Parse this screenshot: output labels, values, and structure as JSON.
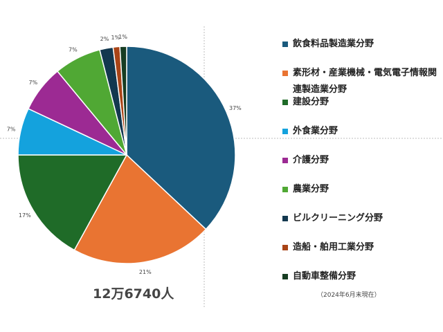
{
  "chart_data": {
    "type": "pie",
    "categories": [
      "飲食料品製造業分野",
      "素形材・産業機械・電気電子情報関連製造業分野",
      "建設分野",
      "外食業分野",
      "介護分野",
      "農業分野",
      "ビルクリーニング分野",
      "造船・舶用工業分野",
      "自動車整備分野"
    ],
    "values": [
      37,
      21,
      17,
      7,
      7,
      7,
      2,
      1,
      1
    ],
    "data_labels": [
      "37%",
      "21%",
      "17%",
      "7%",
      "7%",
      "7%",
      "2%",
      "1%",
      "1%"
    ],
    "colors": [
      "#1a5a7d",
      "#e97432",
      "#1f6b28",
      "#14a2dd",
      "#9c2a93",
      "#50a834",
      "#13384f",
      "#a94417",
      "#173d22"
    ],
    "legend_position": "right",
    "total_label": "12万6740人",
    "note": "（2024年6月末現在）"
  }
}
